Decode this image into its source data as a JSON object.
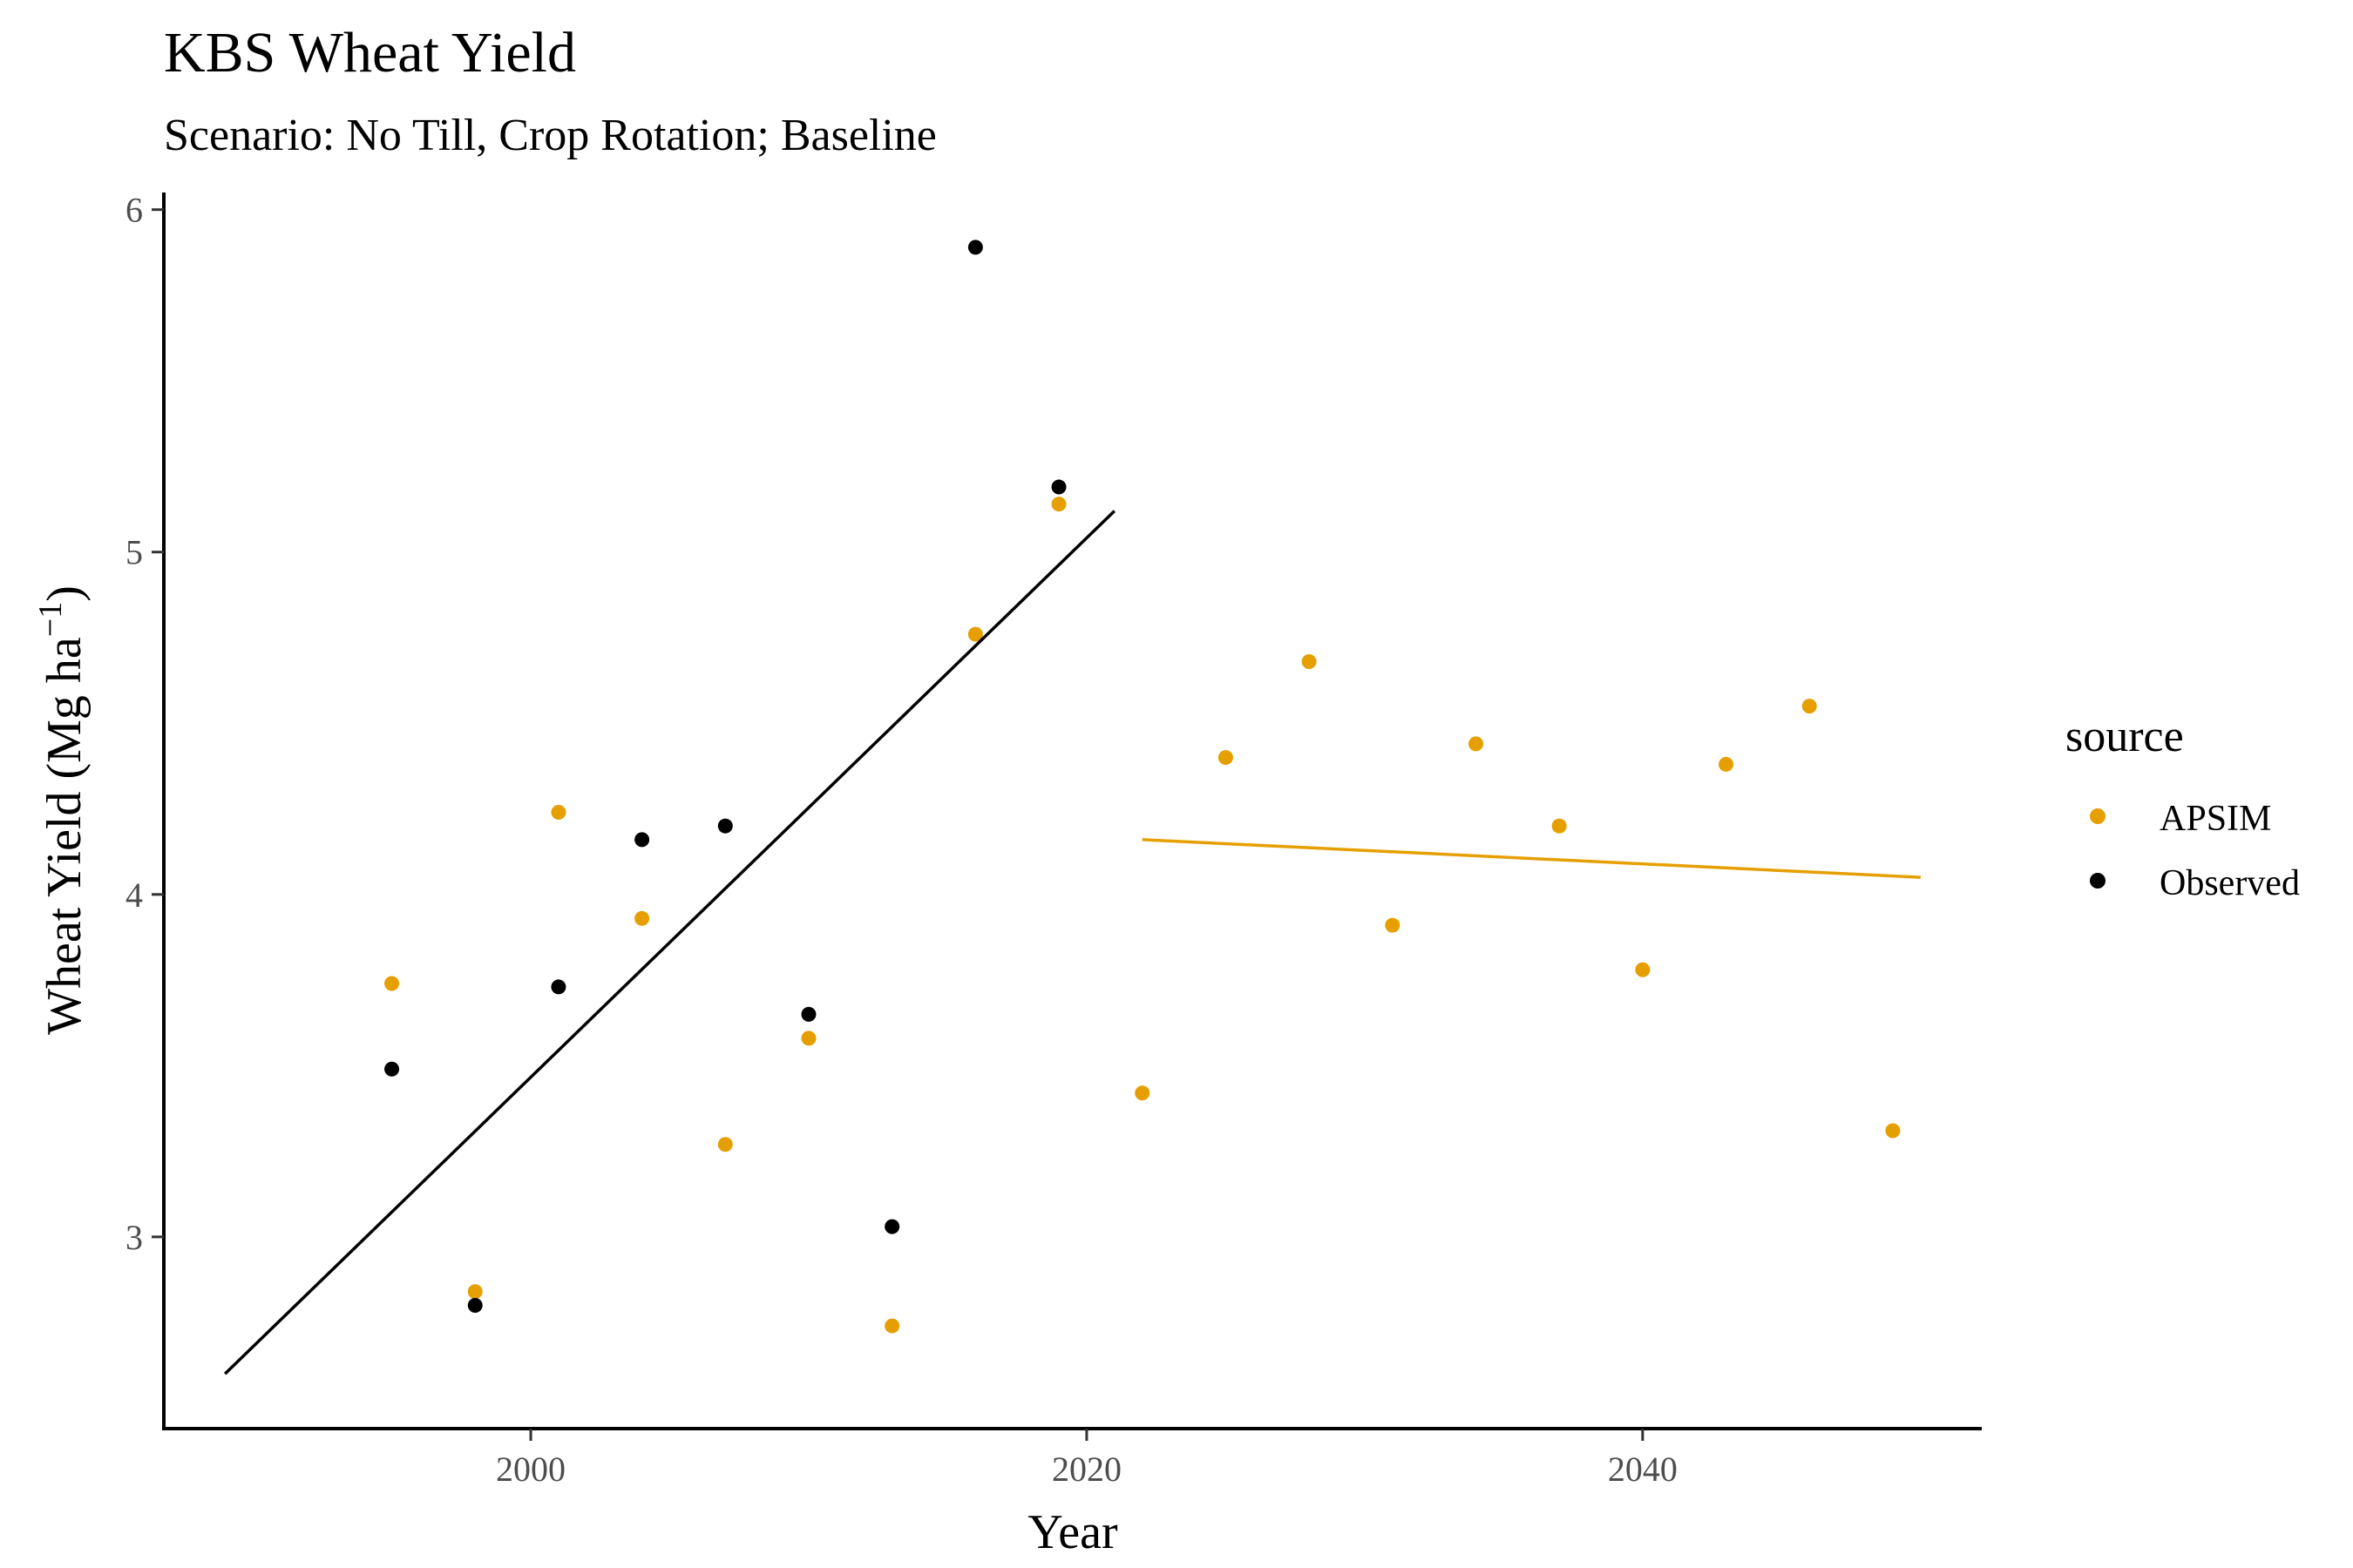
{
  "chart_data": {
    "type": "scatter",
    "title": "KBS Wheat Yield",
    "subtitle": "Scenario: No Till, Crop Rotation; Baseline",
    "xlabel": "Year",
    "ylabel": "Wheat Yield (Mg ha",
    "ylabel_sup": "−1",
    "ylabel_close": ")",
    "xlim": [
      1986.8,
      2052.2
    ],
    "ylim": [
      2.44,
      6.05
    ],
    "xticks": [
      2000,
      2020,
      2040
    ],
    "yticks": [
      3,
      4,
      5,
      6
    ],
    "grid": false,
    "legend": {
      "title": "source",
      "position": "right"
    },
    "series": [
      {
        "name": "APSIM",
        "color": "#E69F00",
        "points": [
          [
            1995,
            3.74
          ],
          [
            1998,
            2.84
          ],
          [
            2001,
            4.24
          ],
          [
            2004,
            3.93
          ],
          [
            2007,
            3.27
          ],
          [
            2010,
            3.58
          ],
          [
            2013,
            2.74
          ],
          [
            2016,
            4.76
          ],
          [
            2019,
            5.14
          ],
          [
            2022,
            3.42
          ],
          [
            2025,
            4.4
          ],
          [
            2028,
            4.68
          ],
          [
            2031,
            3.91
          ],
          [
            2034,
            4.44
          ],
          [
            2037,
            4.2
          ],
          [
            2040,
            3.78
          ],
          [
            2043,
            4.38
          ],
          [
            2046,
            4.55
          ],
          [
            2049,
            3.31
          ]
        ],
        "trend": [
          [
            2022,
            4.16
          ],
          [
            2050,
            4.05
          ]
        ]
      },
      {
        "name": "Observed",
        "color": "#000000",
        "points": [
          [
            1995,
            3.49
          ],
          [
            1998,
            2.8
          ],
          [
            2001,
            3.73
          ],
          [
            2004,
            4.16
          ],
          [
            2007,
            4.2
          ],
          [
            2010,
            3.65
          ],
          [
            2013,
            3.03
          ],
          [
            2016,
            5.89
          ],
          [
            2019,
            5.19
          ]
        ],
        "trend": [
          [
            1989,
            2.6
          ],
          [
            2021,
            5.12
          ]
        ]
      }
    ]
  }
}
